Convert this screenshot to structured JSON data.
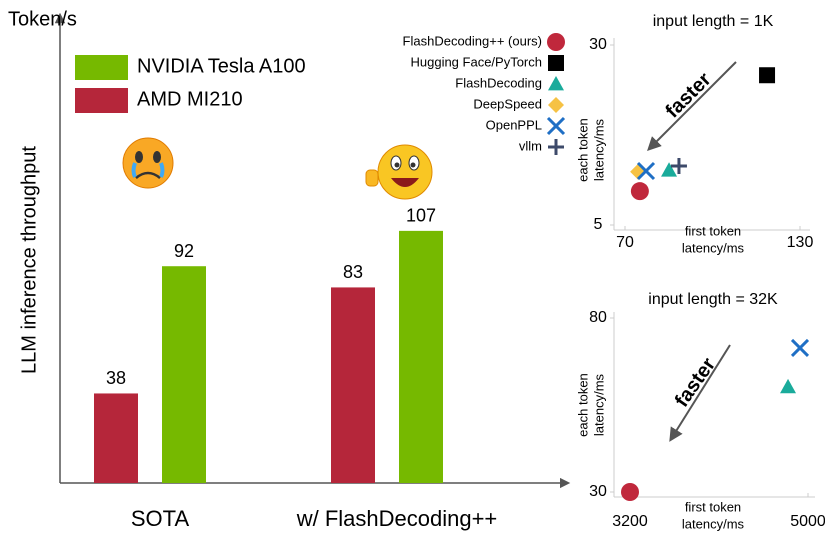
{
  "chart_data": [
    {
      "type": "bar",
      "unit_label": "Token/s",
      "ylabel": "LLM inference throughput",
      "categories": [
        "SOTA",
        "w/ FlashDecoding++"
      ],
      "ylim": [
        0,
        188
      ],
      "series": [
        {
          "name": "AMD MI210",
          "color": "#b5263a",
          "values": [
            38,
            83
          ]
        },
        {
          "name": "NVIDIA Tesla A100",
          "color": "#76b900",
          "values": [
            92,
            107
          ]
        }
      ]
    },
    {
      "type": "scatter",
      "title": "input length = 1K",
      "xlabel": [
        "first token",
        "latency/ms"
      ],
      "ylabel": [
        "each token",
        "latency/ms"
      ],
      "annotation": "faster",
      "xlim": [
        70,
        130
      ],
      "xticks": [
        70,
        130
      ],
      "ylim": [
        5,
        30
      ],
      "yticks": [
        5,
        30
      ],
      "series": [
        {
          "name": "FlashDecoding++ (ours)",
          "color": "#c0283c",
          "marker": "circle",
          "x": [
            75.1
          ],
          "y": [
            9.7
          ]
        },
        {
          "name": "Hugging Face/PyTorch",
          "color": "#000000",
          "marker": "square",
          "x": [
            118.7
          ],
          "y": [
            25.8
          ]
        },
        {
          "name": "FlashDecoding",
          "color": "#1aab9b",
          "marker": "triangle",
          "x": [
            85.1
          ],
          "y": [
            12.6
          ]
        },
        {
          "name": "DeepSpeed",
          "color": "#f6c244",
          "marker": "diamond",
          "x": [
            74.5
          ],
          "y": [
            12.4
          ]
        },
        {
          "name": "OpenPPL",
          "color": "#1f6fc5",
          "marker": "cross",
          "x": [
            77.2
          ],
          "y": [
            12.5
          ]
        },
        {
          "name": "vllm",
          "color": "#3d4a6a",
          "marker": "plus",
          "x": [
            88.5
          ],
          "y": [
            13.2
          ]
        }
      ]
    },
    {
      "type": "scatter",
      "title": "input length = 32K",
      "xlabel": [
        "first token",
        "latency/ms"
      ],
      "ylabel": [
        "each token",
        "latency/ms"
      ],
      "annotation": "faster",
      "xlim": [
        3200,
        5000
      ],
      "xticks": [
        3200,
        5000
      ],
      "ylim": [
        30,
        80
      ],
      "yticks": [
        30,
        80
      ],
      "series": [
        {
          "color": "#c0283c",
          "marker": "circle",
          "x": [
            3200
          ],
          "y": [
            30
          ]
        },
        {
          "color": "#1aab9b",
          "marker": "triangle",
          "x": [
            4798
          ],
          "y": [
            60.2
          ]
        },
        {
          "color": "#1f6fc5",
          "marker": "cross",
          "x": [
            4919
          ],
          "y": [
            71.4
          ]
        }
      ]
    }
  ]
}
